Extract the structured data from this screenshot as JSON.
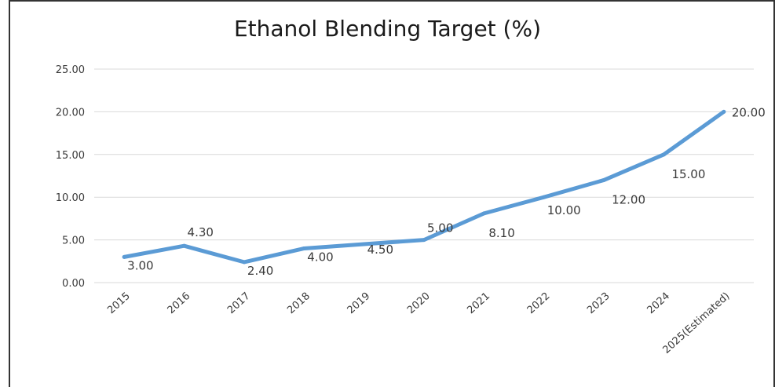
{
  "chart_data": {
    "type": "line",
    "title": "Ethanol Blending Target (%)",
    "xlabel": "",
    "ylabel": "",
    "categories": [
      "2015",
      "2016",
      "2017",
      "2018",
      "2019",
      "2020",
      "2021",
      "2022",
      "2023",
      "2024",
      "2025(Estimated)"
    ],
    "values": [
      3.0,
      4.3,
      2.4,
      4.0,
      4.5,
      5.0,
      8.1,
      10.0,
      12.0,
      15.0,
      20.0
    ],
    "data_labels": [
      "3.00",
      "4.30",
      "2.40",
      "4.00",
      "4.50",
      "5.00",
      "8.10",
      "10.00",
      "12.00",
      "15.00",
      "20.00"
    ],
    "y_ticks": [
      "0.00",
      "5.00",
      "10.00",
      "15.00",
      "20.00",
      "25.00"
    ],
    "ylim": [
      0,
      25
    ],
    "grid": true,
    "legend": "none",
    "line_color": "#5b9bd5"
  }
}
